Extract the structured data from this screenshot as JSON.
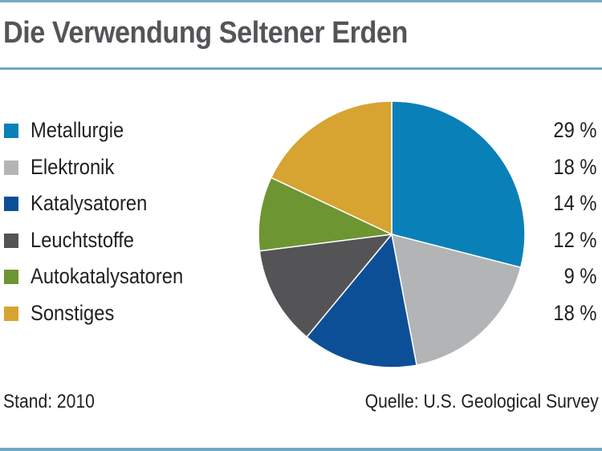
{
  "title": "Die Verwendung Seltener Erden",
  "footer": {
    "stand": "Stand: 2010",
    "source": "Quelle: U.S. Geological Survey"
  },
  "chart_data": {
    "type": "pie",
    "title": "Die Verwendung Seltener Erden",
    "categories": [
      "Metallurgie",
      "Elektronik",
      "Katalysatoren",
      "Leuchtstoffe",
      "Autokatalysatoren",
      "Sonstiges"
    ],
    "values": [
      29,
      18,
      14,
      12,
      9,
      18
    ],
    "value_labels": [
      "29 %",
      "18 %",
      "14 %",
      "12 %",
      "9 %",
      "18 %"
    ],
    "colors": [
      "#0a80b8",
      "#b3b4b6",
      "#0d4f96",
      "#545457",
      "#6d9531",
      "#d7a331"
    ],
    "legend_position": "left"
  },
  "colors": {
    "title_text": "#555459",
    "rule": "#6fa9c6"
  }
}
